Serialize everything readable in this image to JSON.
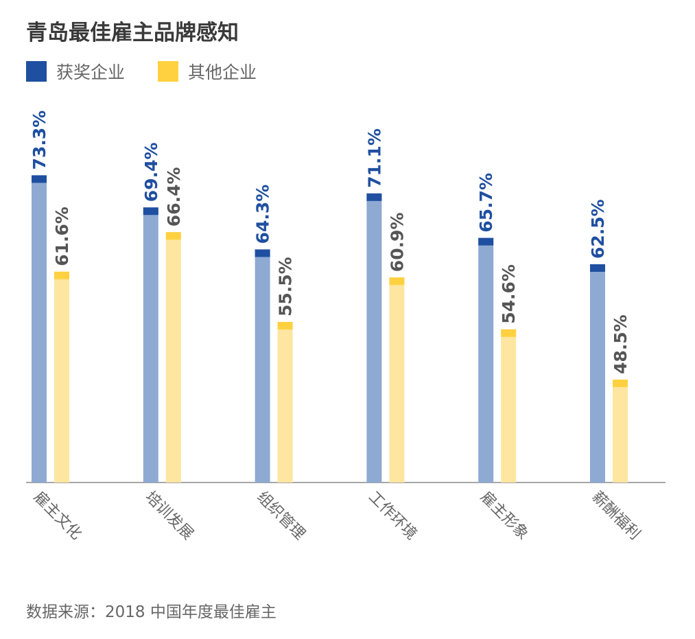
{
  "chart_data": {
    "type": "bar",
    "title": "青岛最佳雇主品牌感知",
    "categories": [
      "雇主文化",
      "培训发展",
      "组织管理",
      "工作环境",
      "雇主形象",
      "薪酬福利"
    ],
    "series": [
      {
        "name": "获奖企业",
        "values": [
          73.3,
          69.4,
          64.3,
          71.1,
          65.7,
          62.5
        ],
        "labels": [
          "73.3%",
          "69.4%",
          "64.3%",
          "71.1%",
          "65.7%",
          "62.5%"
        ],
        "color": "#1f4fa0",
        "body_color": "#8eaad3"
      },
      {
        "name": "其他企业",
        "values": [
          61.6,
          66.4,
          55.5,
          60.9,
          54.6,
          48.5
        ],
        "labels": [
          "61.6%",
          "66.4%",
          "55.5%",
          "60.9%",
          "54.6%",
          "48.5%"
        ],
        "color": "#ffd140",
        "body_color": "#fee6a0"
      }
    ],
    "ylim": [
      36,
      80
    ],
    "grid": false,
    "legend_placement": "top-left",
    "source": "数据来源：2018 中国年度最佳雇主"
  }
}
